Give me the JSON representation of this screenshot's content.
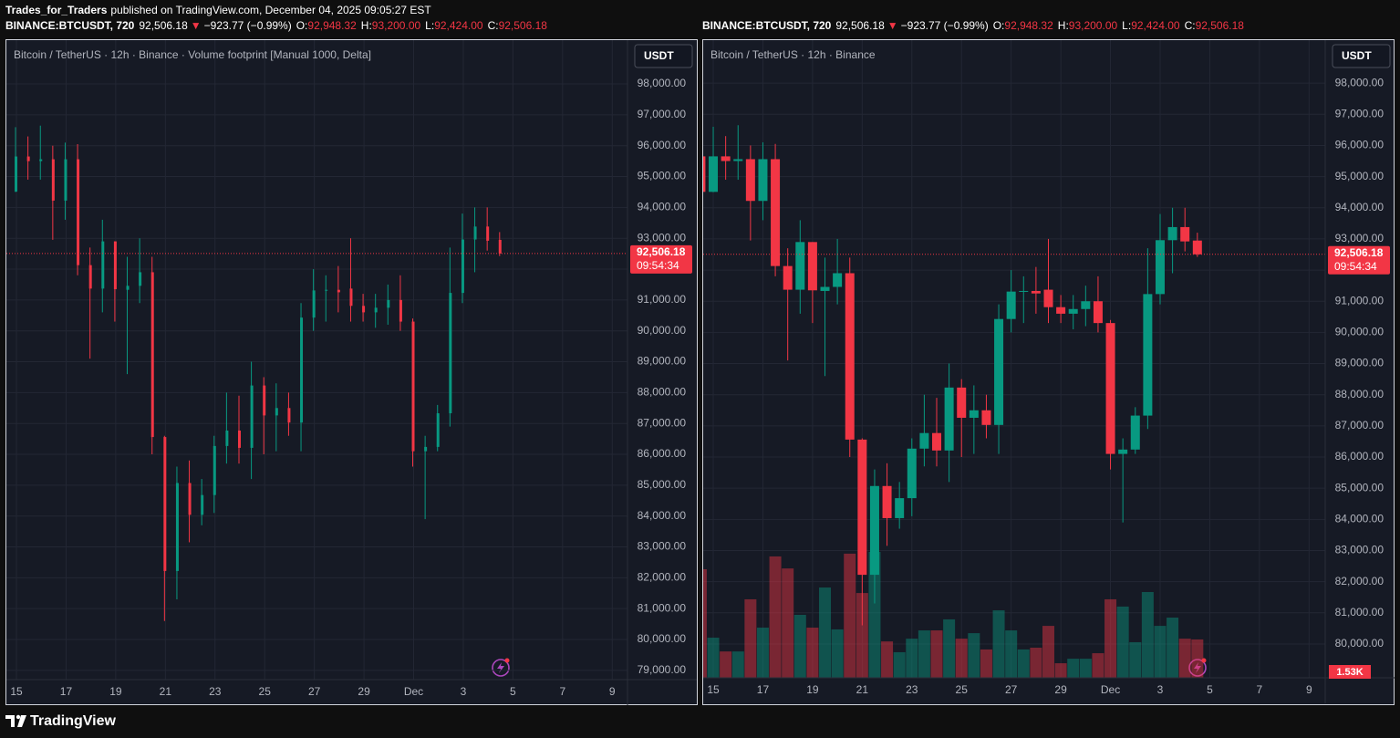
{
  "header": {
    "author": "Trades_for_Traders",
    "published": "published on TradingView.com, December 04, 2025 09:05:27 EST"
  },
  "footer": {
    "brand": "TradingView"
  },
  "chart_data": [
    {
      "type": "footprint",
      "title": "Bitcoin / TetherUS · 12h · Binance · Volume footprint [Manual 1000, Delta]",
      "info": {
        "symbol": "BINANCE:BTCUSDT, 720",
        "price": "92,506.18",
        "arrow": "▼",
        "change": "−923.77 (−0.99%)",
        "ohlc": [
          [
            "O:",
            "92,948.32"
          ],
          [
            "H:",
            "93,200.00"
          ],
          [
            "L:",
            "92,424.00"
          ],
          [
            "C:",
            "92,506.18"
          ]
        ]
      },
      "currency": "USDT",
      "up_color": "#089981",
      "down_color": "#f23645",
      "last_price": {
        "value": 92506.18,
        "label": "92,506.18"
      },
      "countdown": "09:54:34",
      "ylim": [
        78700,
        99420
      ],
      "yticks": [
        {
          "value": 79000,
          "label": "79,000.00"
        },
        {
          "value": 80000,
          "label": "80,000.00"
        },
        {
          "value": 81000,
          "label": "81,000.00"
        },
        {
          "value": 82000,
          "label": "82,000.00"
        },
        {
          "value": 83000,
          "label": "83,000.00"
        },
        {
          "value": 84000,
          "label": "84,000.00"
        },
        {
          "value": 85000,
          "label": "85,000.00"
        },
        {
          "value": 86000,
          "label": "86,000.00"
        },
        {
          "value": 87000,
          "label": "87,000.00"
        },
        {
          "value": 88000,
          "label": "88,000.00"
        },
        {
          "value": 89000,
          "label": "89,000.00"
        },
        {
          "value": 90000,
          "label": "90,000.00"
        },
        {
          "value": 91000,
          "label": "91,000.00"
        },
        {
          "value": 92000,
          "label": "92,000.00"
        },
        {
          "value": 93000,
          "label": "93,000.00"
        },
        {
          "value": 94000,
          "label": "94,000.00"
        },
        {
          "value": 95000,
          "label": "95,000.00"
        },
        {
          "value": 96000,
          "label": "96,000.00"
        },
        {
          "value": 97000,
          "label": "97,000.00"
        },
        {
          "value": 98000,
          "label": "98,000.00"
        }
      ],
      "xlim": [
        0.19,
        50.23
      ],
      "xticks": [
        {
          "value": 1,
          "label": "15"
        },
        {
          "value": 5,
          "label": "17"
        },
        {
          "value": 9,
          "label": "19"
        },
        {
          "value": 13,
          "label": "21"
        },
        {
          "value": 17,
          "label": "23"
        },
        {
          "value": 21,
          "label": "25"
        },
        {
          "value": 25,
          "label": "27"
        },
        {
          "value": 29,
          "label": "29"
        },
        {
          "value": 33,
          "label": "Dec"
        },
        {
          "value": 37,
          "label": "3"
        },
        {
          "value": 41,
          "label": "5"
        },
        {
          "value": 45,
          "label": "7"
        },
        {
          "value": 49,
          "label": "9"
        }
      ]
    },
    {
      "type": "candlestick",
      "title": "Bitcoin / TetherUS · 12h · Binance",
      "info": {
        "symbol": "BINANCE:BTCUSDT, 720",
        "price": "92,506.18",
        "arrow": "▼",
        "change": "−923.77 (−0.99%)",
        "ohlc": [
          [
            "O:",
            "92,948.32"
          ],
          [
            "H:",
            "93,200.00"
          ],
          [
            "L:",
            "92,424.00"
          ],
          [
            "C:",
            "92,506.18"
          ]
        ]
      },
      "currency": "USDT",
      "up_color": "#089981",
      "down_color": "#f23645",
      "last_price": {
        "value": 92506.18,
        "label": "92,506.18"
      },
      "countdown": "09:54:34",
      "ylim": [
        78915,
        99380
      ],
      "yticks": [
        {
          "value": 80000,
          "label": "80,000.00"
        },
        {
          "value": 81000,
          "label": "81,000.00"
        },
        {
          "value": 82000,
          "label": "82,000.00"
        },
        {
          "value": 83000,
          "label": "83,000.00"
        },
        {
          "value": 84000,
          "label": "84,000.00"
        },
        {
          "value": 85000,
          "label": "85,000.00"
        },
        {
          "value": 86000,
          "label": "86,000.00"
        },
        {
          "value": 87000,
          "label": "87,000.00"
        },
        {
          "value": 88000,
          "label": "88,000.00"
        },
        {
          "value": 89000,
          "label": "89,000.00"
        },
        {
          "value": 90000,
          "label": "90,000.00"
        },
        {
          "value": 91000,
          "label": "91,000.00"
        },
        {
          "value": 92000,
          "label": "92,000.00"
        },
        {
          "value": 93000,
          "label": "93,000.00"
        },
        {
          "value": 94000,
          "label": "94,000.00"
        },
        {
          "value": 95000,
          "label": "95,000.00"
        },
        {
          "value": 96000,
          "label": "96,000.00"
        },
        {
          "value": 97000,
          "label": "97,000.00"
        },
        {
          "value": 98000,
          "label": "98,000.00"
        }
      ],
      "xlim": [
        0.19,
        50.3
      ],
      "xticks": [
        {
          "value": 1,
          "label": "15"
        },
        {
          "value": 5,
          "label": "17"
        },
        {
          "value": 9,
          "label": "19"
        },
        {
          "value": 13,
          "label": "21"
        },
        {
          "value": 17,
          "label": "23"
        },
        {
          "value": 21,
          "label": "25"
        },
        {
          "value": 25,
          "label": "27"
        },
        {
          "value": 29,
          "label": "29"
        },
        {
          "value": 33,
          "label": "Dec"
        },
        {
          "value": 37,
          "label": "3"
        },
        {
          "value": 41,
          "label": "5"
        },
        {
          "value": 45,
          "label": "7"
        },
        {
          "value": 49,
          "label": "9"
        }
      ],
      "open": [
        95650,
        94510,
        95650,
        95500,
        95560,
        94220,
        95560,
        92130,
        91370,
        92900,
        91330,
        91460,
        91900,
        86560,
        82220,
        85070,
        84040,
        84680,
        86270,
        86770,
        86210,
        88230,
        87260,
        87500,
        87030,
        90430,
        91310,
        91330,
        91370,
        90810,
        90600,
        90750,
        91000,
        90300,
        86100,
        86240,
        87330,
        91230,
        92960,
        93380,
        92948.32
      ],
      "high": [
        95800,
        96600,
        96300,
        96650,
        96000,
        96100,
        96050,
        92700,
        93600,
        92900,
        92400,
        93000,
        92400,
        86600,
        85600,
        85800,
        85200,
        86600,
        88000,
        87900,
        89000,
        88500,
        88300,
        88000,
        90900,
        92000,
        91800,
        92100,
        93000,
        91200,
        91200,
        91500,
        91800,
        90400,
        86600,
        87600,
        92700,
        93800,
        94000,
        94000,
        93200
      ],
      "low": [
        94500,
        94500,
        94900,
        94900,
        92950,
        93600,
        91800,
        89100,
        90600,
        90300,
        88600,
        90900,
        86000,
        80600,
        81300,
        83150,
        83700,
        84100,
        85700,
        85700,
        85200,
        86000,
        86100,
        86600,
        86100,
        90000,
        90300,
        90600,
        90300,
        90300,
        90100,
        90200,
        90000,
        85600,
        83900,
        86100,
        86900,
        90900,
        91900,
        92600,
        92424
      ],
      "close": [
        94510,
        95650,
        95500,
        95560,
        94220,
        95560,
        92130,
        91370,
        92900,
        91350,
        91460,
        91900,
        86560,
        82220,
        85070,
        84040,
        84680,
        86270,
        86770,
        86210,
        88230,
        87260,
        87500,
        87030,
        90430,
        91310,
        91330,
        91250,
        90810,
        90600,
        90750,
        91000,
        90300,
        86100,
        86240,
        87330,
        91230,
        92960,
        93380,
        92920,
        92506.18
      ],
      "volume": [
        4330,
        1600,
        1050,
        1050,
        3130,
        2000,
        4840,
        4360,
        2510,
        2000,
        3600,
        1930,
        4950,
        3380,
        5020,
        1450,
        1020,
        1560,
        1890,
        1890,
        2330,
        1560,
        1780,
        1130,
        2690,
        1890,
        1130,
        1200,
        2070,
        580,
        760,
        760,
        980,
        3130,
        2840,
        1420,
        3420,
        2070,
        2400,
        1560,
        1530
      ],
      "volume_last_label": "1.53K"
    }
  ]
}
